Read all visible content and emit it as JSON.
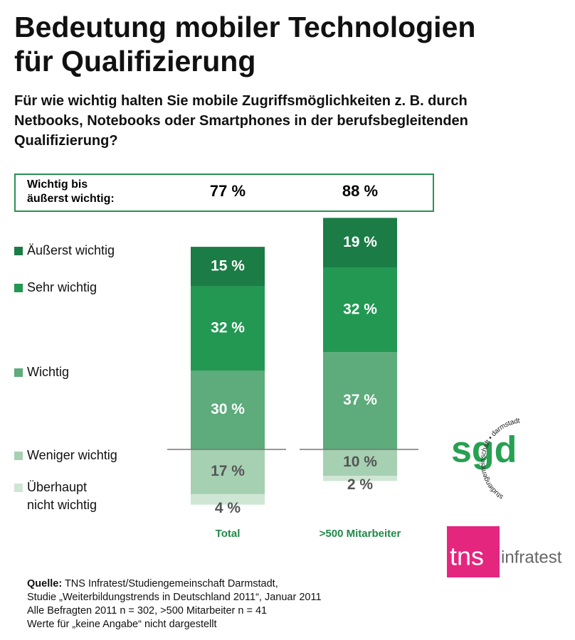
{
  "chart_data": {
    "type": "bar",
    "title": "Bedeutung mobiler Technologien\nfür Qualifizierung",
    "subtitle": "Für wie wichtig halten Sie mobile Zugriffsmöglichkeiten z. B. durch\nNetbooks, Notebooks oder Smartphones in der berufsbegleitenden\nQualifizierung?",
    "summary": {
      "label": "Wichtig bis\näußerst wichtig:",
      "values": [
        77,
        88
      ],
      "value_labels": [
        "77 %",
        "88 %"
      ]
    },
    "categories": [
      "Total",
      ">500 Mitarbeiter"
    ],
    "series": [
      {
        "name": "Äußerst wichtig",
        "color": "#1b7c46",
        "values": [
          15,
          19
        ],
        "value_labels": [
          "15 %",
          "19 %"
        ]
      },
      {
        "name": "Sehr wichtig",
        "color": "#229853",
        "values": [
          32,
          32
        ],
        "value_labels": [
          "32 %",
          "32 %"
        ]
      },
      {
        "name": "Wichtig",
        "color": "#5eab7c",
        "values": [
          30,
          37
        ],
        "value_labels": [
          "30 %",
          "37 %"
        ]
      },
      {
        "name": "Weniger wichtig",
        "color": "#a6d0b2",
        "values": [
          17,
          10
        ],
        "value_labels": [
          "17 %",
          "10 %"
        ]
      },
      {
        "name": "Überhaupt\nnicht wichtig",
        "color": "#cfe6d5",
        "values": [
          4,
          2
        ],
        "value_labels": [
          "4 %",
          "2 %"
        ]
      }
    ],
    "source": {
      "label": "Quelle:",
      "lines": [
        "TNS Infratest/Studiengemeinschaft Darmstadt,",
        "Studie „Weiterbildungstrends in Deutschland 2011“, Januar 2011",
        "Alle Befragten 2011 n = 302, >500 Mitarbeiter n = 41",
        "Werte für „keine Angabe“ nicht dargestellt"
      ]
    },
    "logos": {
      "sgd": "sgd",
      "sgd_ring": "studiengemeinschaft • darmstadt",
      "tns": "tns",
      "tns_suffix": "infratest"
    }
  }
}
